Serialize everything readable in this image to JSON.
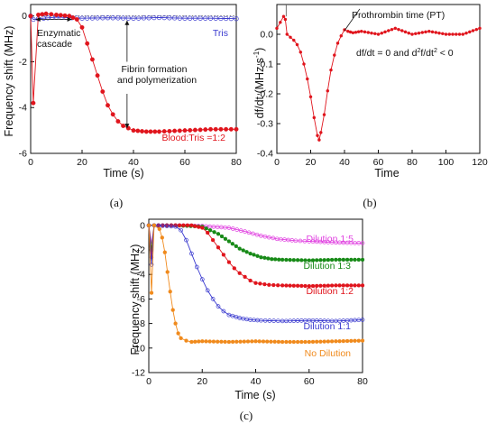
{
  "chart_data": [
    {
      "id": "a",
      "panel_label": "(a)",
      "type": "line",
      "xlabel": "Time (s)",
      "ylabel": "Frequency shift (MHz)",
      "xlim": [
        0,
        80
      ],
      "ylim": [
        -6,
        0.5
      ],
      "xticks": [
        "0",
        "20",
        "40",
        "60",
        "80"
      ],
      "yticks": [
        "0",
        "-2",
        "-4",
        "-6"
      ],
      "series": [
        {
          "name": "Tris",
          "color": "#3a3acf",
          "marker": "open-circle",
          "x": [
            0,
            1,
            5,
            10,
            20,
            30,
            40,
            50,
            60,
            70,
            80
          ],
          "y": [
            0,
            -0.15,
            -0.1,
            -0.05,
            -0.1,
            -0.08,
            -0.1,
            -0.07,
            -0.1,
            -0.1,
            -0.12
          ]
        },
        {
          "name": "Blood:Tris =1:2",
          "color": "#e0141c",
          "marker": "filled-circle",
          "x": [
            0,
            1,
            3,
            6,
            10,
            15,
            18,
            20,
            22,
            24,
            26,
            28,
            30,
            32,
            34,
            36,
            38,
            40,
            45,
            50,
            60,
            70,
            80
          ],
          "y": [
            0,
            -3.8,
            0.05,
            0.1,
            0.05,
            0.0,
            -0.15,
            -0.5,
            -1.2,
            -1.9,
            -2.6,
            -3.3,
            -3.9,
            -4.3,
            -4.6,
            -4.8,
            -4.9,
            -5.0,
            -5.05,
            -5.05,
            -5.0,
            -4.95,
            -4.95
          ]
        }
      ],
      "annotations": [
        "Enzymatic cascade",
        "Fibrin formation and polymerization"
      ]
    },
    {
      "id": "b",
      "panel_label": "(b)",
      "type": "line",
      "xlabel": "Time",
      "ylabel": "df/dt (MHz s⁻¹)",
      "xlim": [
        0,
        120
      ],
      "ylim": [
        -0.4,
        0.1
      ],
      "xticks": [
        "0",
        "20",
        "40",
        "60",
        "80",
        "100",
        "120"
      ],
      "yticks": [
        "0.0",
        "-0.1",
        "-0.2",
        "-0.3",
        "-0.4"
      ],
      "series": [
        {
          "name": "df/dt",
          "color": "#e0141c",
          "marker": "filled-circle",
          "x": [
            0,
            2,
            4,
            5,
            6,
            8,
            10,
            12,
            14,
            16,
            18,
            20,
            22,
            24,
            25,
            26,
            28,
            30,
            32,
            34,
            36,
            38,
            40,
            42,
            45,
            50,
            60,
            70,
            80,
            90,
            100,
            110,
            120
          ],
          "y": [
            0.02,
            0.04,
            0.06,
            0.05,
            0.0,
            -0.01,
            -0.02,
            -0.035,
            -0.06,
            -0.1,
            -0.15,
            -0.21,
            -0.28,
            -0.34,
            -0.355,
            -0.33,
            -0.27,
            -0.19,
            -0.12,
            -0.07,
            -0.03,
            -0.005,
            0.015,
            0.01,
            0.005,
            0.01,
            0.0,
            0.02,
            0.0,
            0.01,
            0.0,
            0.0,
            0.02
          ]
        }
      ],
      "annotations": [
        "Prothrombin time (PT)",
        "df/dt = 0 and d²f/dt² < 0"
      ]
    },
    {
      "id": "c",
      "panel_label": "(c)",
      "type": "line",
      "xlabel": "Time (s)",
      "ylabel": "Frequency shift (MHz)",
      "xlim": [
        0,
        80
      ],
      "ylim": [
        -12,
        0.5
      ],
      "xticks": [
        "0",
        "20",
        "40",
        "60",
        "80"
      ],
      "yticks": [
        "0",
        "-2",
        "-4",
        "-6",
        "-8",
        "-10",
        "-12"
      ],
      "series": [
        {
          "name": "Dilution 1:5",
          "color": "#e040e0",
          "marker": "open-circle",
          "x": [
            0,
            1,
            2,
            10,
            20,
            30,
            36,
            42,
            48,
            55,
            60,
            70,
            80
          ],
          "y": [
            0,
            -1.5,
            0,
            0,
            -0.05,
            -0.2,
            -0.5,
            -0.85,
            -1.1,
            -1.25,
            -1.3,
            -1.4,
            -1.45
          ]
        },
        {
          "name": "Dilution 1:3",
          "color": "#178a17",
          "marker": "filled-circle",
          "x": [
            0,
            1,
            2,
            10,
            20,
            26,
            30,
            34,
            38,
            42,
            46,
            50,
            60,
            70,
            80
          ],
          "y": [
            0,
            -2.0,
            0,
            0,
            -0.1,
            -0.7,
            -1.3,
            -1.9,
            -2.3,
            -2.6,
            -2.75,
            -2.8,
            -2.85,
            -2.8,
            -2.8
          ]
        },
        {
          "name": "Dilution 1:2",
          "color": "#e0141c",
          "marker": "filled-circle",
          "x": [
            0,
            1,
            2,
            10,
            16,
            20,
            22,
            24,
            26,
            28,
            30,
            32,
            34,
            36,
            38,
            40,
            45,
            50,
            60,
            70,
            80
          ],
          "y": [
            0,
            -2.6,
            0,
            0,
            0,
            -0.2,
            -0.6,
            -1.2,
            -1.8,
            -2.4,
            -3.0,
            -3.5,
            -3.9,
            -4.2,
            -4.5,
            -4.7,
            -4.85,
            -4.9,
            -4.95,
            -4.9,
            -4.9
          ]
        },
        {
          "name": "Dilution 1:1",
          "color": "#3a3acf",
          "marker": "open-circle",
          "x": [
            0,
            1,
            2,
            10,
            12,
            14,
            16,
            18,
            20,
            22,
            24,
            26,
            28,
            30,
            34,
            38,
            42,
            50,
            60,
            70,
            80
          ],
          "y": [
            0,
            -3.2,
            0,
            -0.1,
            -0.4,
            -1.2,
            -2.3,
            -3.4,
            -4.4,
            -5.3,
            -6.0,
            -6.6,
            -7.0,
            -7.3,
            -7.55,
            -7.7,
            -7.75,
            -7.8,
            -7.75,
            -7.8,
            -7.7
          ]
        },
        {
          "name": "No Dilution",
          "color": "#f08a1c",
          "marker": "filled-circle",
          "x": [
            0,
            1,
            2,
            4,
            5,
            6,
            7,
            8,
            9,
            10,
            11,
            12,
            14,
            16,
            20,
            30,
            40,
            50,
            60,
            70,
            80
          ],
          "y": [
            0,
            -5.5,
            0,
            -0.3,
            -1.0,
            -2.2,
            -3.8,
            -5.4,
            -6.9,
            -8.0,
            -8.8,
            -9.2,
            -9.4,
            -9.5,
            -9.45,
            -9.5,
            -9.45,
            -9.5,
            -9.5,
            -9.45,
            -9.4
          ]
        }
      ]
    }
  ]
}
